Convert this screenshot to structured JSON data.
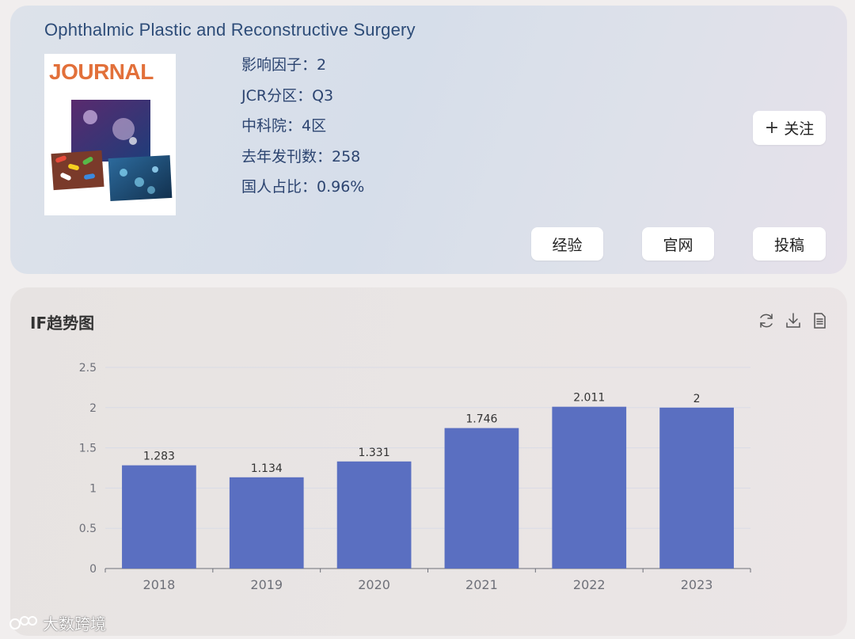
{
  "journal": {
    "title": "Ophthalmic Plastic and Reconstructive Surgery",
    "cover_text": "JOURNAL",
    "stats": [
      "影响因子：2",
      "JCR分区：Q3",
      "中科院：4区",
      "去年发刊数：258",
      "国人占比：0.96%"
    ]
  },
  "buttons": {
    "follow": "关注",
    "experience": "经验",
    "website": "官网",
    "submit": "投稿"
  },
  "chart_section": {
    "title": "IF趋势图",
    "icons": [
      "refresh-icon",
      "download-icon",
      "document-icon"
    ]
  },
  "chart_data": {
    "type": "bar",
    "categories": [
      "2018",
      "2019",
      "2020",
      "2021",
      "2022",
      "2023"
    ],
    "values": [
      1.283,
      1.134,
      1.331,
      1.746,
      2.011,
      2
    ],
    "data_labels": [
      "1.283",
      "1.134",
      "1.331",
      "1.746",
      "2.011",
      "2"
    ],
    "y_ticks": [
      "0",
      "0.5",
      "1",
      "1.5",
      "2",
      "2.5"
    ],
    "ylim": [
      0,
      2.5
    ],
    "bar_color": "#5a6fc1",
    "grid": true
  },
  "watermark": "大数跨境",
  "colors": {
    "title": "#2d4c78",
    "cover_accent": "#e2703a"
  }
}
